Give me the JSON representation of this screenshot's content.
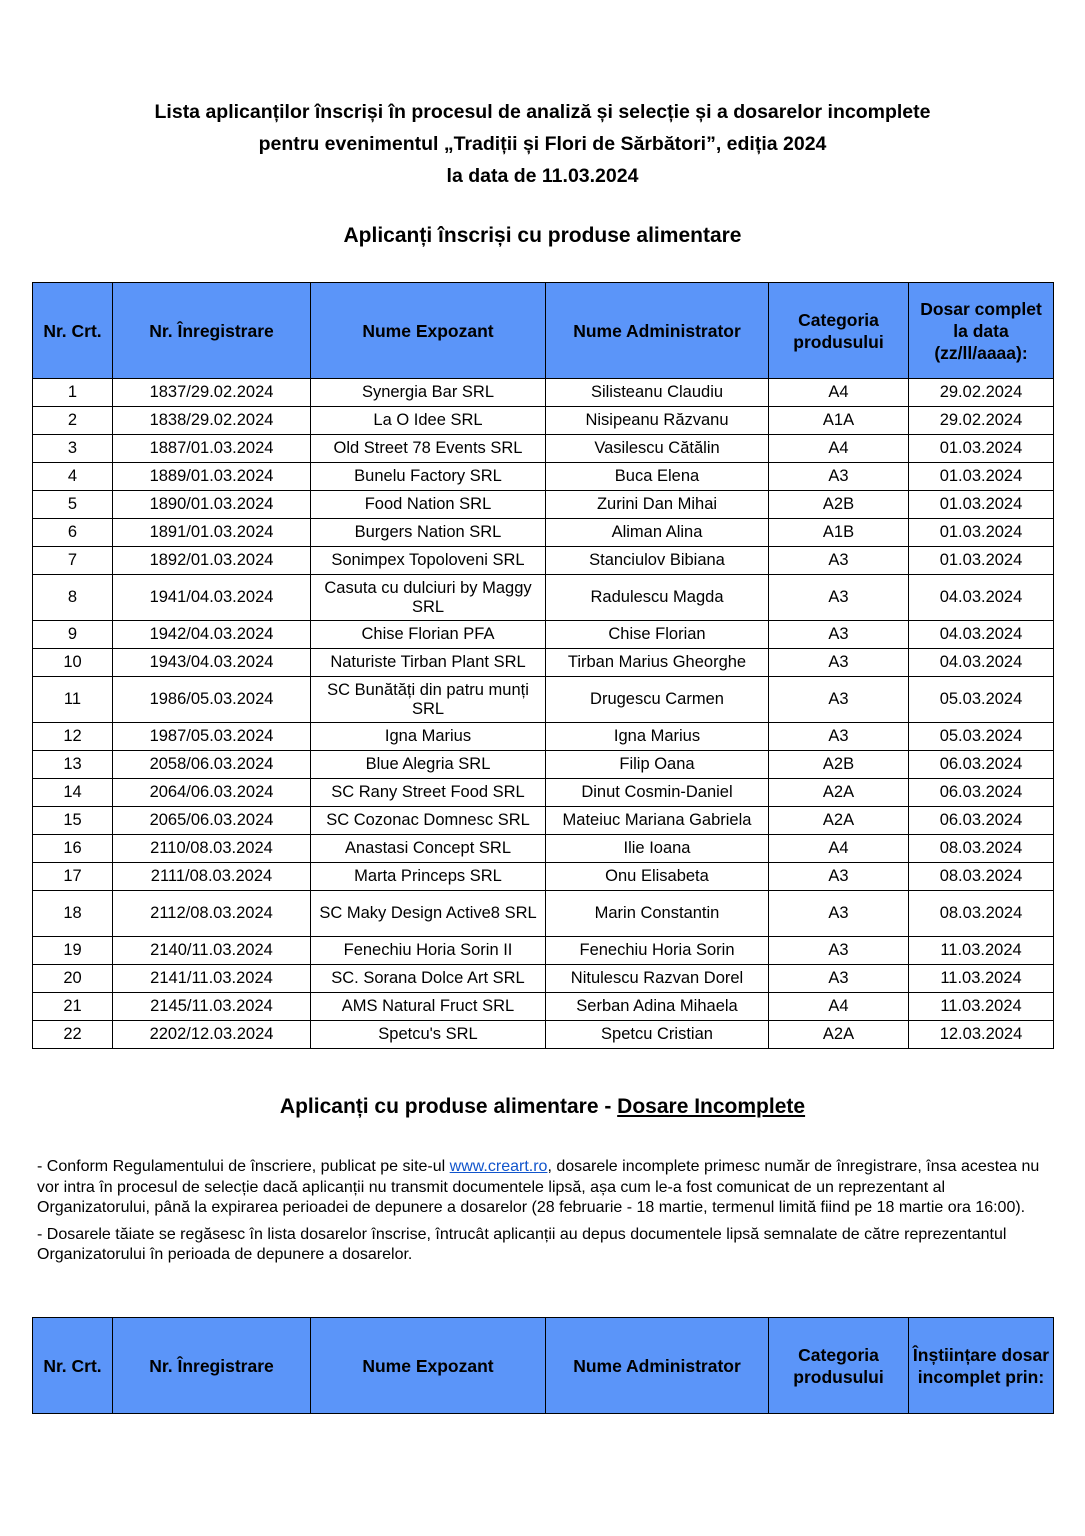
{
  "title_lines": [
    "Lista aplicanților înscriși în procesul de analiză și selecție și a dosarelor incomplete",
    "pentru evenimentul „Tradiții și Flori de Sărbători”, ediția 2024",
    "la data de 11.03.2024"
  ],
  "section1_title": "Aplicanți înscriși cu produse alimentare",
  "table1": {
    "headers": [
      "Nr. Crt.",
      "Nr. Înregistrare",
      "Nume Expozant",
      "Nume Administrator",
      "Categoria produsului",
      "Dosar complet la data (zz/ll/aaaa):"
    ],
    "rows": [
      [
        "1",
        "1837/29.02.2024",
        "Synergia Bar SRL",
        "Silisteanu Claudiu",
        "A4",
        "29.02.2024"
      ],
      [
        "2",
        "1838/29.02.2024",
        "La O Idee SRL",
        "Nisipeanu Răzvanu",
        "A1A",
        "29.02.2024"
      ],
      [
        "3",
        "1887/01.03.2024",
        "Old Street 78 Events SRL",
        "Vasilescu Cătălin",
        "A4",
        "01.03.2024"
      ],
      [
        "4",
        "1889/01.03.2024",
        "Bunelu Factory SRL",
        "Buca Elena",
        "A3",
        "01.03.2024"
      ],
      [
        "5",
        "1890/01.03.2024",
        "Food Nation SRL",
        "Zurini Dan Mihai",
        "A2B",
        "01.03.2024"
      ],
      [
        "6",
        "1891/01.03.2024",
        "Burgers Nation SRL",
        "Aliman Alina",
        "A1B",
        "01.03.2024"
      ],
      [
        "7",
        "1892/01.03.2024",
        "Sonimpex Topoloveni SRL",
        "Stanciulov Bibiana",
        "A3",
        "01.03.2024"
      ],
      [
        "8",
        "1941/04.03.2024",
        "Casuta cu dulciuri by Maggy SRL",
        "Radulescu Magda",
        "A3",
        "04.03.2024"
      ],
      [
        "9",
        "1942/04.03.2024",
        "Chise Florian PFA",
        "Chise Florian",
        "A3",
        "04.03.2024"
      ],
      [
        "10",
        "1943/04.03.2024",
        "Naturiste Tirban Plant SRL",
        "Tirban Marius Gheorghe",
        "A3",
        "04.03.2024"
      ],
      [
        "11",
        "1986/05.03.2024",
        "SC Bunătăți din patru munți SRL",
        "Drugescu Carmen",
        "A3",
        "05.03.2024"
      ],
      [
        "12",
        "1987/05.03.2024",
        "Igna Marius",
        "Igna Marius",
        "A3",
        "05.03.2024"
      ],
      [
        "13",
        "2058/06.03.2024",
        "Blue Alegria SRL",
        "Filip Oana",
        "A2B",
        "06.03.2024"
      ],
      [
        "14",
        "2064/06.03.2024",
        "SC Rany Street Food SRL",
        "Dinut Cosmin-Daniel",
        "A2A",
        "06.03.2024"
      ],
      [
        "15",
        "2065/06.03.2024",
        "SC Cozonac Domnesc SRL",
        "Mateiuc Mariana Gabriela",
        "A2A",
        "06.03.2024"
      ],
      [
        "16",
        "2110/08.03.2024",
        "Anastasi Concept SRL",
        "Ilie Ioana",
        "A4",
        "08.03.2024"
      ],
      [
        "17",
        "2111/08.03.2024",
        "Marta Princeps SRL",
        "Onu Elisabeta",
        "A3",
        "08.03.2024"
      ],
      [
        "18",
        "2112/08.03.2024",
        "SC Maky Design Active8 SRL",
        "Marin Constantin",
        "A3",
        "08.03.2024"
      ],
      [
        "19",
        "2140/11.03.2024",
        "Fenechiu Horia Sorin II",
        "Fenechiu Horia Sorin",
        "A3",
        "11.03.2024"
      ],
      [
        "20",
        "2141/11.03.2024",
        "SC. Sorana Dolce Art SRL",
        "Nitulescu Razvan Dorel",
        "A3",
        "11.03.2024"
      ],
      [
        "21",
        "2145/11.03.2024",
        "AMS Natural Fruct SRL",
        "Serban Adina Mihaela",
        "A4",
        "11.03.2024"
      ],
      [
        "22",
        "2202/12.03.2024",
        "Spetcu's SRL",
        "Spetcu Cristian",
        "A2A",
        "12.03.2024"
      ]
    ],
    "tall_rows": [
      7,
      10,
      17
    ]
  },
  "section2_title_prefix": "Aplicanți cu produse alimentare - ",
  "section2_title_underlined": "Dosare Incomplete",
  "notes": {
    "p1_before": "- Conform Regulamentului de înscriere, publicat pe site-ul ",
    "p1_link": "www.creart.ro",
    "p1_after": ", dosarele incomplete primesc număr de înregistrare, însa acestea nu vor intra în procesul de selecție dacă aplicanții nu transmit documentele lipsă, așa cum le-a fost comunicat de un reprezentant al Organizatorului, până la expirarea perioadei de depunere a dosarelor (28 februarie - 18 martie, termenul limită fiind pe 18 martie ora 16:00).",
    "p2": "- Dosarele tăiate se regăsesc în lista dosarelor înscrise, întrucât aplicanții au depus documentele lipsă semnalate de către reprezentantul Organizatorului în perioada de depunere a dosarelor."
  },
  "table2": {
    "headers": [
      "Nr. Crt.",
      "Nr. Înregistrare",
      "Nume Expozant",
      "Nume Administrator",
      "Categoria produsului",
      "Înștiințare dosar incomplet prin:"
    ]
  },
  "colors": {
    "header_bg": "#5b95f9",
    "link": "#1155cc"
  }
}
